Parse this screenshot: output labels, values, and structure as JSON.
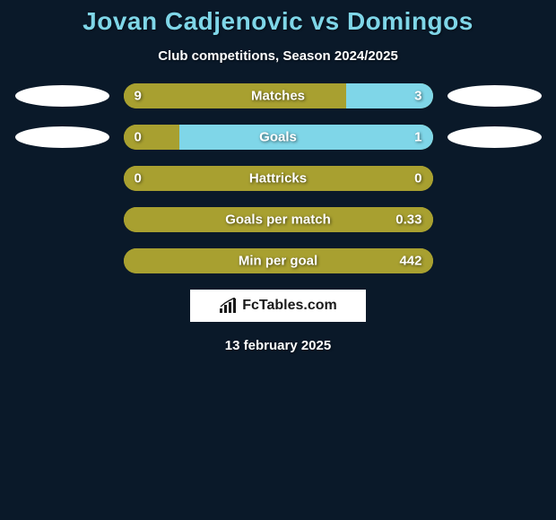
{
  "title": "Jovan Cadjenovic vs Domingos",
  "subtitle": "Club competitions, Season 2024/2025",
  "colors": {
    "background": "#0a1929",
    "title": "#7fd6e8",
    "text": "#ffffff",
    "player1": "#a8a030",
    "player2": "#7fd6e8",
    "avatar": "#ffffff"
  },
  "stats": [
    {
      "label": "Matches",
      "left_val": "9",
      "right_val": "3",
      "left_pct": 72,
      "right_pct": 28,
      "show_avatars": true
    },
    {
      "label": "Goals",
      "left_val": "0",
      "right_val": "1",
      "left_pct": 18,
      "right_pct": 82,
      "show_avatars": true
    },
    {
      "label": "Hattricks",
      "left_val": "0",
      "right_val": "0",
      "left_pct": 100,
      "right_pct": 0,
      "show_avatars": false
    },
    {
      "label": "Goals per match",
      "left_val": "",
      "right_val": "0.33",
      "left_pct": 100,
      "right_pct": 0,
      "show_avatars": false
    },
    {
      "label": "Min per goal",
      "left_val": "",
      "right_val": "442",
      "left_pct": 100,
      "right_pct": 0,
      "show_avatars": false
    }
  ],
  "logo_text": "FcTables.com",
  "date": "13 february 2025",
  "bar": {
    "track_width": 345,
    "track_height": 28,
    "radius": 14
  },
  "typography": {
    "title_size": 28,
    "subtitle_size": 15,
    "stat_label_size": 15,
    "stat_val_size": 15
  }
}
